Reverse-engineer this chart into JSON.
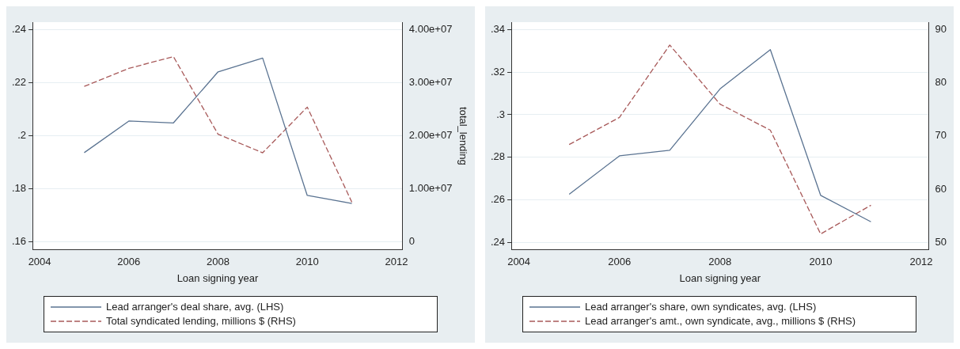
{
  "chart_data": [
    {
      "type": "line",
      "xlabel": "Loan signing year",
      "y2label": "total_lending",
      "x": [
        2005,
        2006,
        2007,
        2008,
        2009,
        2010,
        2011
      ],
      "series": [
        {
          "name": "Lead arranger's deal share, avg. (LHS)",
          "color": "#5a7391",
          "line_style": "solid",
          "values": [
            0.1936,
            0.2055,
            0.2048,
            0.224,
            0.2292,
            0.1775,
            0.1745
          ]
        },
        {
          "name": "Total syndicated lending, millions $ (RHS)",
          "color": "#a85a5a",
          "line_style": "dashed",
          "axis": "y2",
          "values": [
            29300000,
            32700000,
            34900000,
            20300000,
            16800000,
            25400000,
            7500000
          ]
        }
      ],
      "xlim": [
        2003.84,
        2012.14
      ],
      "xticks": [
        2004,
        2006,
        2008,
        2010,
        2012
      ],
      "ylim": [
        0.157,
        0.2427
      ],
      "yticks": [
        {
          "value": 0.16,
          "label": ".16"
        },
        {
          "value": 0.18,
          "label": ".18"
        },
        {
          "value": 0.2,
          "label": ".2"
        },
        {
          "value": 0.22,
          "label": ".22"
        },
        {
          "value": 0.24,
          "label": ".24"
        }
      ],
      "y2lim": [
        -1500000,
        41400000
      ],
      "y2ticks": [
        0,
        {
          "value": 10000000,
          "label": "1.00e+07"
        },
        {
          "value": 20000000,
          "label": "2.00e+07"
        },
        {
          "value": 30000000,
          "label": "3.00e+07"
        },
        {
          "value": 40000000,
          "label": "4.00e+07"
        }
      ],
      "grid": "y",
      "legend": "bottom"
    },
    {
      "type": "line",
      "xlabel": "Loan signing year",
      "x": [
        2005,
        2006,
        2007,
        2008,
        2009,
        2010,
        2011
      ],
      "series": [
        {
          "name": "Lead arranger's share, own syndicates, avg. (LHS)",
          "color": "#5a7391",
          "line_style": "solid",
          "values": [
            0.2627,
            0.2807,
            0.2833,
            0.3121,
            0.3305,
            0.2622,
            0.2498
          ]
        },
        {
          "name": "Lead arranger's amt., own syndicate, avg., millions $ (RHS)",
          "color": "#a85a5a",
          "line_style": "dashed",
          "axis": "y2",
          "values": [
            68.4,
            73.5,
            87.1,
            76.0,
            71.1,
            51.6,
            57.0
          ]
        }
      ],
      "xlim": [
        2003.85,
        2012.15
      ],
      "xticks": [
        2004,
        2006,
        2008,
        2010,
        2012
      ],
      "ylim": [
        0.2366,
        0.3434
      ],
      "yticks": [
        {
          "value": 0.24,
          "label": ".24"
        },
        {
          "value": 0.26,
          "label": ".26"
        },
        {
          "value": 0.28,
          "label": ".28"
        },
        {
          "value": 0.3,
          "label": ".3"
        },
        {
          "value": 0.32,
          "label": ".32"
        },
        {
          "value": 0.34,
          "label": ".34"
        }
      ],
      "y2lim": [
        48.6,
        91.4
      ],
      "y2ticks": [
        50,
        60,
        70,
        80,
        90
      ],
      "grid": "y",
      "legend": "bottom"
    }
  ]
}
